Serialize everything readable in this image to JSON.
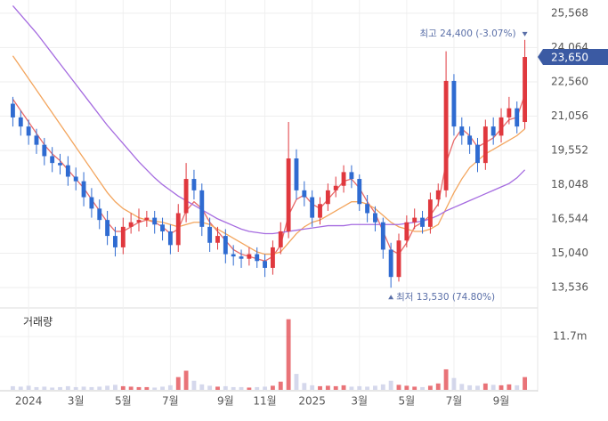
{
  "chart_data": {
    "type": "candlestick",
    "categories": [
      null,
      null,
      "2024",
      null,
      null,
      null,
      null,
      null,
      "3월",
      null,
      null,
      null,
      null,
      null,
      "5월",
      null,
      null,
      null,
      null,
      null,
      "7월",
      null,
      null,
      null,
      null,
      null,
      null,
      "9월",
      null,
      null,
      null,
      null,
      "11월",
      null,
      null,
      null,
      null,
      null,
      "2025",
      null,
      null,
      null,
      null,
      null,
      "3월",
      null,
      null,
      null,
      null,
      null,
      "5월",
      null,
      null,
      null,
      null,
      null,
      "7월",
      null,
      null,
      null,
      null,
      null,
      "9월",
      null,
      null,
      null
    ],
    "open": [
      21600,
      21000,
      20600,
      20200,
      19800,
      19300,
      19000,
      18900,
      18400,
      18200,
      17500,
      17000,
      16500,
      15800,
      15300,
      16200,
      16400,
      16500,
      16600,
      16300,
      16000,
      15400,
      16800,
      18300,
      17800,
      16200,
      15500,
      15800,
      15000,
      14900,
      14800,
      15000,
      14700,
      14400,
      15300,
      16000,
      19200,
      17800,
      17500,
      16600,
      17200,
      17800,
      18000,
      18600,
      18300,
      17200,
      16800,
      16400,
      15200,
      14000,
      15600,
      16400,
      16600,
      16200,
      17400,
      17800,
      22600,
      20600,
      20200,
      19800,
      19000,
      20600,
      20200,
      21000,
      21400,
      20800
    ],
    "high": [
      21900,
      21300,
      20900,
      20500,
      20100,
      19700,
      19400,
      19300,
      18800,
      18600,
      17900,
      17400,
      16900,
      16200,
      16600,
      16800,
      17000,
      16900,
      16900,
      16600,
      16300,
      17200,
      19000,
      18700,
      18100,
      16600,
      16200,
      16100,
      15400,
      15200,
      15300,
      15300,
      15000,
      15600,
      16400,
      20800,
      19600,
      18200,
      17800,
      17500,
      18100,
      18400,
      18900,
      18900,
      18500,
      17600,
      17100,
      16600,
      15500,
      15900,
      16700,
      17000,
      16900,
      17700,
      18100,
      23900,
      22900,
      21000,
      20600,
      20100,
      20900,
      21000,
      21400,
      21900,
      21700,
      24400
    ],
    "low": [
      20600,
      20200,
      19800,
      19400,
      18900,
      18600,
      18500,
      18000,
      17800,
      17100,
      16600,
      16100,
      15400,
      14900,
      15000,
      15900,
      16000,
      16200,
      15900,
      15600,
      15000,
      15100,
      16400,
      17400,
      15800,
      15100,
      15200,
      14600,
      14500,
      14400,
      14500,
      14400,
      14000,
      14100,
      15000,
      15700,
      17400,
      17100,
      16200,
      16300,
      16900,
      17500,
      17700,
      17900,
      16900,
      16400,
      16000,
      14800,
      13530,
      13800,
      15300,
      16100,
      15900,
      15900,
      17100,
      17500,
      20200,
      19800,
      19400,
      18600,
      18700,
      19800,
      19900,
      20700,
      20300,
      20500
    ],
    "close": [
      21000,
      20600,
      20200,
      19800,
      19300,
      19000,
      18900,
      18400,
      18200,
      17500,
      17000,
      16500,
      15800,
      15300,
      16200,
      16400,
      16500,
      16600,
      16300,
      16000,
      15400,
      16800,
      18300,
      17800,
      16200,
      15500,
      15800,
      15000,
      14900,
      14800,
      15000,
      14700,
      14400,
      15300,
      16000,
      19200,
      17800,
      17500,
      16600,
      17200,
      17800,
      18000,
      18600,
      18300,
      17200,
      16800,
      16400,
      15200,
      14000,
      15600,
      16400,
      16600,
      16200,
      17400,
      17800,
      22600,
      20600,
      20200,
      19800,
      19000,
      20600,
      20200,
      21000,
      21400,
      20600,
      23650
    ],
    "up_color": "#e0383e",
    "down_color": "#2f6bd1",
    "moving_averages": [
      {
        "color": "#e86a6a",
        "values": [
          21800,
          21300,
          20800,
          20300,
          19800,
          19400,
          19100,
          18700,
          18300,
          17900,
          17400,
          16900,
          16400,
          16000,
          16000,
          16200,
          16400,
          16500,
          16400,
          16200,
          15900,
          16100,
          16900,
          17300,
          17000,
          16400,
          16000,
          15600,
          15200,
          15000,
          14900,
          14800,
          14700,
          14900,
          15400,
          16700,
          17400,
          17600,
          17200,
          17000,
          17400,
          17800,
          18200,
          18300,
          17900,
          17300,
          16800,
          16000,
          15200,
          15000,
          15500,
          16200,
          16400,
          16700,
          17200,
          19000,
          20000,
          20500,
          20200,
          19700,
          19900,
          20100,
          20500,
          20900,
          21000,
          22000
        ]
      },
      {
        "color": "#f3a55d",
        "values": [
          23700,
          23200,
          22700,
          22200,
          21700,
          21200,
          20700,
          20200,
          19700,
          19200,
          18700,
          18200,
          17700,
          17300,
          17000,
          16800,
          16600,
          16500,
          16450,
          16400,
          16300,
          16200,
          16300,
          16400,
          16400,
          16300,
          16100,
          15900,
          15700,
          15500,
          15300,
          15100,
          15000,
          15000,
          15100,
          15500,
          15900,
          16200,
          16400,
          16500,
          16700,
          16900,
          17100,
          17300,
          17300,
          17200,
          17000,
          16700,
          16400,
          16200,
          16100,
          16000,
          16000,
          16100,
          16300,
          17000,
          17700,
          18300,
          18800,
          19100,
          19400,
          19600,
          19800,
          20000,
          20200,
          20500
        ]
      },
      {
        "color": "#a56be0",
        "values": [
          25900,
          25500,
          25100,
          24700,
          24250,
          23800,
          23350,
          22900,
          22450,
          22000,
          21550,
          21100,
          20650,
          20250,
          19850,
          19450,
          19050,
          18700,
          18350,
          18050,
          17800,
          17550,
          17350,
          17150,
          16950,
          16750,
          16550,
          16400,
          16250,
          16100,
          16000,
          15950,
          15900,
          15900,
          15950,
          16000,
          16050,
          16100,
          16150,
          16200,
          16250,
          16250,
          16250,
          16300,
          16300,
          16300,
          16300,
          16300,
          16300,
          16300,
          16350,
          16400,
          16450,
          16550,
          16700,
          16900,
          17050,
          17200,
          17350,
          17500,
          17650,
          17800,
          17950,
          18100,
          18350,
          18700
        ]
      }
    ],
    "ylim": [
      12680,
      26150
    ],
    "yticks": [
      {
        "value": 13536,
        "label": "13,536"
      },
      {
        "value": 15040,
        "label": "15,040"
      },
      {
        "value": 16544,
        "label": "16,544"
      },
      {
        "value": 18048,
        "label": "18,048"
      },
      {
        "value": 19552,
        "label": "19,552"
      },
      {
        "value": 21056,
        "label": "21,056"
      },
      {
        "value": 22560,
        "label": "22,560"
      },
      {
        "value": 24064,
        "label": "24,064"
      },
      {
        "value": 25568,
        "label": "25,568"
      }
    ],
    "last_price": {
      "value": 23650,
      "label": "23,650"
    },
    "high_annotation": "최고 24,400 (-3.07%)",
    "low_annotation": "최저 13,530 (74.80%)",
    "grid": true,
    "volume": {
      "title": "거래량",
      "color": "#c3c8e4",
      "values": [
        0.8,
        0.7,
        0.9,
        0.6,
        0.7,
        0.5,
        0.6,
        0.8,
        0.6,
        0.7,
        0.6,
        0.7,
        0.9,
        1.1,
        0.8,
        0.7,
        0.6,
        0.6,
        0.5,
        0.7,
        1.0,
        2.8,
        4.2,
        2.0,
        1.2,
        0.9,
        0.7,
        0.8,
        0.6,
        0.6,
        0.5,
        0.6,
        0.7,
        0.9,
        1.8,
        15.5,
        3.5,
        1.5,
        1.0,
        0.8,
        0.9,
        0.8,
        1.0,
        0.7,
        0.8,
        0.7,
        0.9,
        1.2,
        2.0,
        1.1,
        0.9,
        0.7,
        0.6,
        0.9,
        1.4,
        4.5,
        2.6,
        1.3,
        1.0,
        0.9,
        1.4,
        1.1,
        1.0,
        1.2,
        1.0,
        2.8
      ],
      "ylim": [
        0,
        16.8
      ],
      "yticks": [
        {
          "value": 11.7,
          "label": "11.7m"
        }
      ]
    }
  }
}
